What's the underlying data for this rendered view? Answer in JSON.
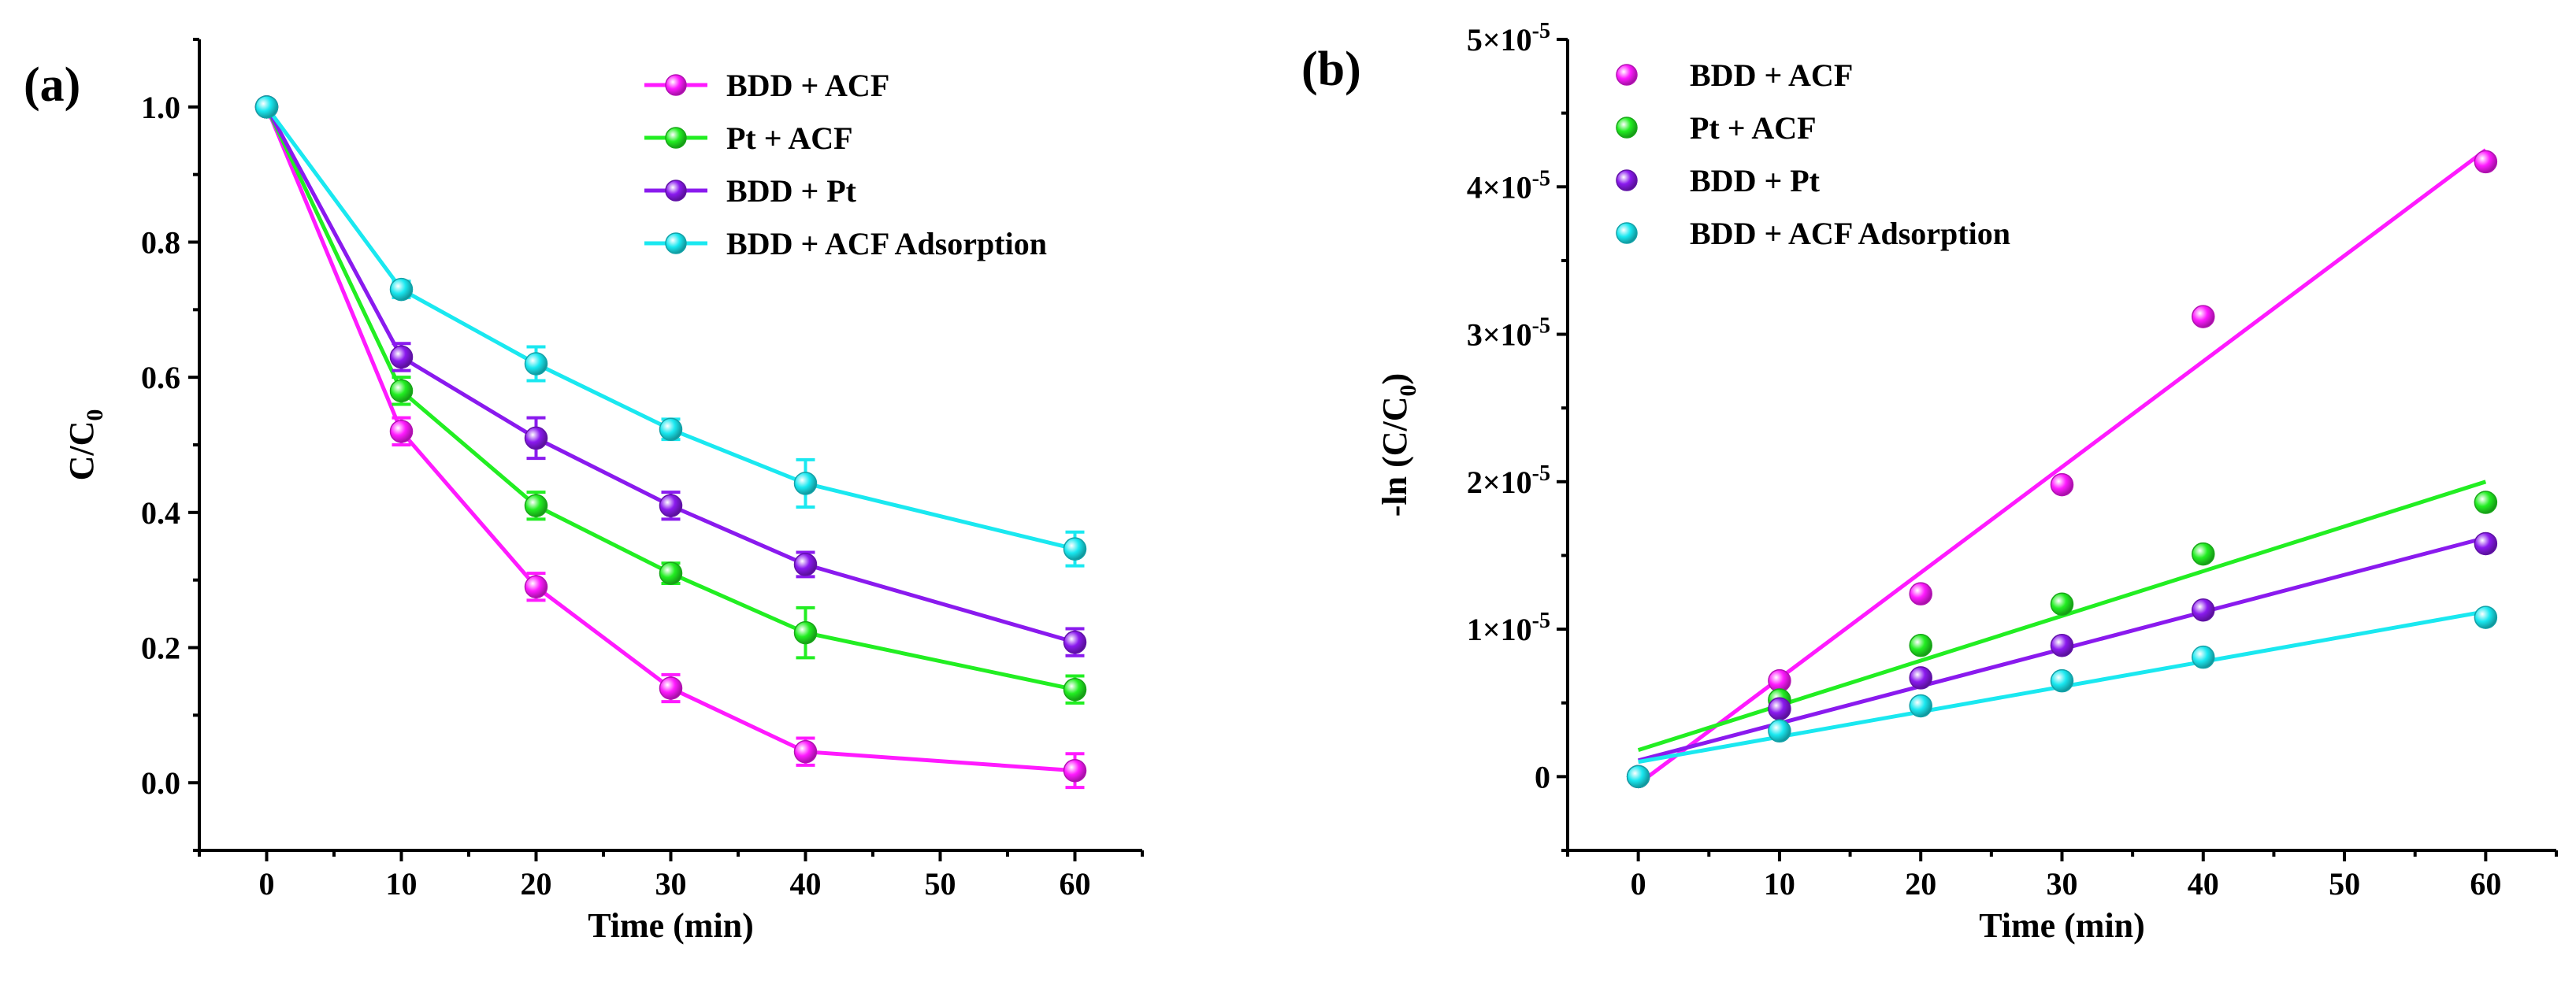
{
  "chart_data": [
    {
      "id": "a",
      "panel_label": "(a)",
      "type": "line",
      "title": "",
      "xlabel": "Time (min)",
      "ylabel_main": "C/C",
      "ylabel_sub": "0",
      "xlim": [
        -5,
        65
      ],
      "ylim": [
        -0.1,
        1.1
      ],
      "x_ticks": [
        0,
        10,
        20,
        30,
        40,
        50,
        60
      ],
      "x_tick_labels": [
        "0",
        "10",
        "20",
        "30",
        "40",
        "50",
        "60"
      ],
      "y_ticks": [
        0.0,
        0.2,
        0.4,
        0.6,
        0.8,
        1.0
      ],
      "y_tick_labels": [
        "0.0",
        "0.2",
        "0.4",
        "0.6",
        "0.8",
        "1.0"
      ],
      "legend_position": "top-right",
      "x": [
        0,
        10,
        20,
        30,
        40,
        60
      ],
      "series": [
        {
          "name": "BDD + ACF",
          "color": "#ff1aff",
          "values": [
            1.0,
            0.52,
            0.29,
            0.14,
            0.046,
            0.018
          ],
          "errors": [
            0.0,
            0.02,
            0.02,
            0.02,
            0.02,
            0.025
          ]
        },
        {
          "name": "Pt + ACF",
          "color": "#22ee22",
          "values": [
            1.0,
            0.58,
            0.41,
            0.31,
            0.222,
            0.138
          ],
          "errors": [
            0.0,
            0.02,
            0.02,
            0.015,
            0.037,
            0.02
          ]
        },
        {
          "name": "BDD + Pt",
          "color": "#8a1aee",
          "values": [
            1.0,
            0.63,
            0.51,
            0.41,
            0.323,
            0.208
          ],
          "errors": [
            0.0,
            0.02,
            0.03,
            0.02,
            0.018,
            0.02
          ]
        },
        {
          "name": "BDD + ACF Adsorption",
          "color": "#1ae8f0",
          "values": [
            1.0,
            0.73,
            0.62,
            0.523,
            0.443,
            0.346
          ],
          "errors": [
            0.0,
            0.012,
            0.025,
            0.015,
            0.035,
            0.025
          ]
        }
      ]
    },
    {
      "id": "b",
      "panel_label": "(b)",
      "type": "scatter",
      "title": "",
      "xlabel": "Time (min)",
      "ylabel_main": "-ln (C/C",
      "ylabel_sub": "0",
      "ylabel_close": ")",
      "xlim": [
        -5,
        65
      ],
      "ylim": [
        -5e-06,
        5e-05
      ],
      "x_ticks": [
        0,
        10,
        20,
        30,
        40,
        50,
        60
      ],
      "x_tick_labels": [
        "0",
        "10",
        "20",
        "30",
        "40",
        "50",
        "60"
      ],
      "y_ticks": [
        0,
        1e-05,
        2e-05,
        3e-05,
        4e-05,
        5e-05
      ],
      "y_tick_labels": [
        {
          "base": "0",
          "exp": ""
        },
        {
          "base": "1×10",
          "exp": "-5"
        },
        {
          "base": "2×10",
          "exp": "-5"
        },
        {
          "base": "3×10",
          "exp": "-5"
        },
        {
          "base": "4×10",
          "exp": "-5"
        },
        {
          "base": "5×10",
          "exp": "-5"
        }
      ],
      "legend_position": "top-left",
      "x": [
        0,
        10,
        20,
        30,
        40,
        60
      ],
      "series": [
        {
          "name": "BDD + ACF",
          "color": "#ff1aff",
          "values": [
            0,
            6.5e-06,
            1.24e-05,
            1.98e-05,
            3.12e-05,
            4.17e-05
          ],
          "fit": [
            -5e-07,
            4.25e-05
          ]
        },
        {
          "name": "Pt + ACF",
          "color": "#22ee22",
          "values": [
            0,
            5.2e-06,
            8.9e-06,
            1.17e-05,
            1.51e-05,
            1.86e-05
          ],
          "fit": [
            1.8e-06,
            2e-05
          ]
        },
        {
          "name": "BDD + Pt",
          "color": "#8a1aee",
          "values": [
            0,
            4.6e-06,
            6.7e-06,
            8.9e-06,
            1.13e-05,
            1.58e-05
          ],
          "fit": [
            1.1e-06,
            1.62e-05
          ]
        },
        {
          "name": "BDD + ACF Adsorption",
          "color": "#1ae8f0",
          "values": [
            0,
            3.1e-06,
            4.8e-06,
            6.5e-06,
            8.1e-06,
            1.08e-05
          ],
          "fit": [
            1e-06,
            1.12e-05
          ]
        }
      ]
    }
  ]
}
